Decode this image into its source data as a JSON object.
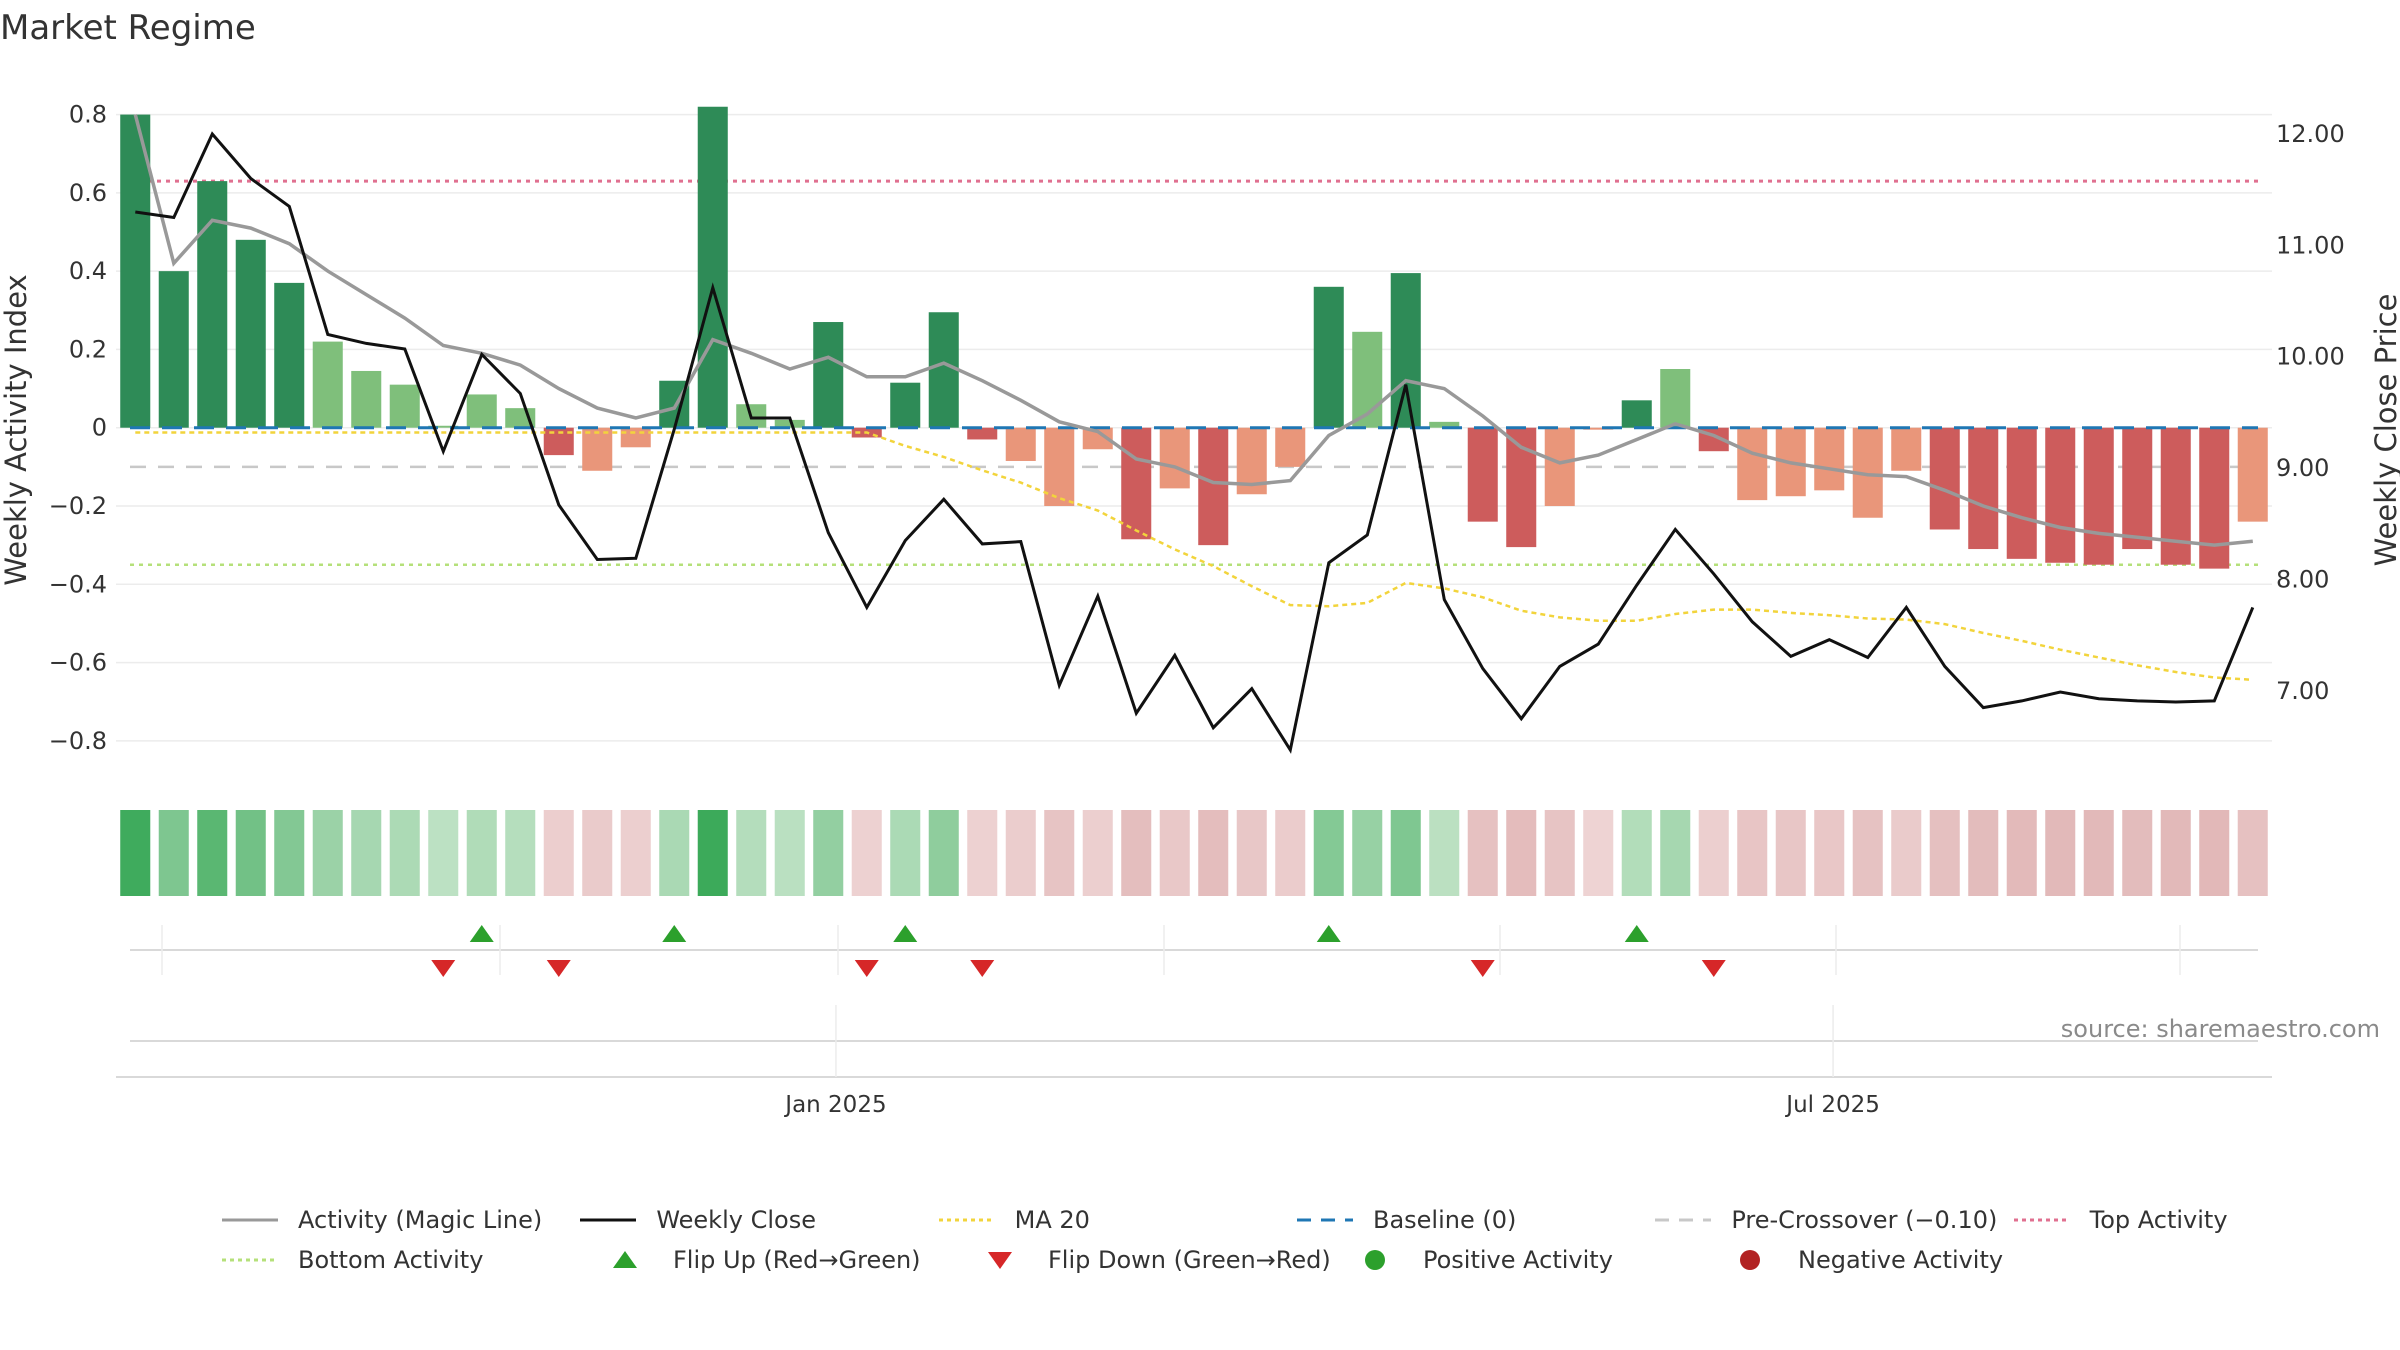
{
  "chart_data": {
    "type": "bar",
    "title": "Market Regime",
    "source": "source: sharemaestro.com",
    "ylabel_left": "Weekly Activity Index",
    "ylabel_right": "Weekly Close Price",
    "ylim_left": [
      -0.9,
      0.85
    ],
    "ylim_right": [
      6.2,
      12.35
    ],
    "yticks_left": [
      0.8,
      0.6,
      0.4,
      0.2,
      0,
      -0.2,
      -0.4,
      -0.6,
      -0.8
    ],
    "yticks_left_labels": [
      "0.8",
      "0.6",
      "0.4",
      "0.2",
      "0",
      "−0.2",
      "−0.4",
      "−0.6",
      "−0.8"
    ],
    "yticks_right": [
      12,
      11,
      10,
      9,
      8,
      7
    ],
    "yticks_right_labels": [
      "12.00",
      "11.00",
      "10.00",
      "9.00",
      "8.00",
      "7.00"
    ],
    "xtick_labels": [
      {
        "label": "Jan 2025",
        "week": 18.7
      },
      {
        "label": "Jul 2025",
        "week": 44.6
      }
    ],
    "weeks": 56,
    "activity": [
      0.8,
      0.4,
      0.63,
      0.48,
      0.37,
      0.22,
      0.145,
      0.11,
      0.005,
      0.085,
      0.05,
      -0.07,
      -0.11,
      -0.05,
      0.12,
      0.82,
      0.06,
      0.02,
      0.27,
      -0.025,
      0.115,
      0.295,
      -0.03,
      -0.085,
      -0.2,
      -0.055,
      -0.285,
      -0.155,
      -0.3,
      -0.17,
      -0.1,
      0.36,
      0.245,
      0.395,
      0.015,
      -0.24,
      -0.305,
      -0.2,
      -0.005,
      0.07,
      0.15,
      -0.06,
      -0.185,
      -0.175,
      -0.16,
      -0.23,
      -0.11,
      -0.26,
      -0.31,
      -0.335,
      -0.345,
      -0.35,
      -0.31,
      -0.35,
      -0.36,
      -0.24
    ],
    "magic_line": [
      0.8,
      0.42,
      0.53,
      0.51,
      0.47,
      0.4,
      0.34,
      0.28,
      0.21,
      0.19,
      0.16,
      0.1,
      0.05,
      0.025,
      0.05,
      0.225,
      0.19,
      0.15,
      0.18,
      0.13,
      0.13,
      0.165,
      0.12,
      0.07,
      0.015,
      -0.01,
      -0.08,
      -0.1,
      -0.14,
      -0.145,
      -0.135,
      -0.02,
      0.035,
      0.12,
      0.1,
      0.03,
      -0.05,
      -0.09,
      -0.07,
      -0.03,
      0.01,
      -0.02,
      -0.065,
      -0.09,
      -0.105,
      -0.12,
      -0.125,
      -0.16,
      -0.2,
      -0.23,
      -0.255,
      -0.27,
      -0.28,
      -0.29,
      -0.3,
      -0.29
    ],
    "weekly_close": [
      11.3,
      11.25,
      12.0,
      11.6,
      11.35,
      10.2,
      10.12,
      10.07,
      9.15,
      10.02,
      9.67,
      8.67,
      8.18,
      8.19,
      9.35,
      10.62,
      9.45,
      9.45,
      8.42,
      7.75,
      8.35,
      8.72,
      8.32,
      8.34,
      7.05,
      7.85,
      6.8,
      7.32,
      6.67,
      7.02,
      6.47,
      8.15,
      8.4,
      9.75,
      7.82,
      7.2,
      6.75,
      7.22,
      7.42,
      7.95,
      8.45,
      8.05,
      7.62,
      7.31,
      7.46,
      7.3,
      7.75,
      7.22,
      6.85,
      6.91,
      6.99,
      6.93,
      6.91,
      6.9,
      6.91,
      7.75
    ],
    "ma20": [
      9.32,
      9.32,
      9.32,
      9.32,
      9.32,
      9.32,
      9.32,
      9.32,
      9.32,
      9.32,
      9.32,
      9.32,
      9.32,
      9.32,
      9.32,
      9.32,
      9.32,
      9.32,
      9.32,
      9.32,
      9.2,
      9.1,
      8.98,
      8.87,
      8.73,
      8.62,
      8.44,
      8.27,
      8.12,
      7.94,
      7.77,
      7.76,
      7.79,
      7.97,
      7.92,
      7.84,
      7.72,
      7.66,
      7.63,
      7.63,
      7.69,
      7.73,
      7.73,
      7.7,
      7.68,
      7.65,
      7.64,
      7.6,
      7.52,
      7.45,
      7.37,
      7.3,
      7.23,
      7.17,
      7.12,
      7.1
    ],
    "ma20_start_week": 0,
    "baseline": 0,
    "pre_crossover": -0.1,
    "top_activity": 0.63,
    "bottom_activity": -0.35,
    "flip_up_weeks": [
      9,
      14,
      20,
      31,
      39
    ],
    "flip_down_weeks": [
      8,
      11,
      19,
      22,
      35,
      41
    ],
    "colors": {
      "strong_green": "#2e8b57",
      "light_green": "#7fbf7b",
      "strong_red": "#cd5c5c",
      "light_red": "#e9967a",
      "magic_line": "#999999",
      "weekly_close": "#111111",
      "ma20": "#f2d43c",
      "baseline": "#1f77b4",
      "pre_crossover": "#c8c8c8",
      "top_activity": "#e07090",
      "bottom_activity": "#b5e07a",
      "flip_up": "#2ca02c",
      "flip_down": "#d62728",
      "positive_activity": "#2ca02c",
      "negative_activity": "#b22222"
    },
    "legend": [
      {
        "label": "Activity (Magic Line)",
        "style": "solid",
        "color": "#999999"
      },
      {
        "label": "Weekly Close",
        "style": "solid",
        "color": "#111111"
      },
      {
        "label": "MA 20",
        "style": "dotted",
        "color": "#f2d43c"
      },
      {
        "label": "Baseline (0)",
        "style": "dashed",
        "color": "#1f77b4"
      },
      {
        "label": "Pre-Crossover (−0.10)",
        "style": "dashed",
        "color": "#c8c8c8"
      },
      {
        "label": "Top Activity",
        "style": "dotted",
        "color": "#e07090"
      },
      {
        "label": "Bottom Activity",
        "style": "dotted",
        "color": "#b5e07a"
      },
      {
        "label": "Flip Up (Red→Green)",
        "style": "triangle-up",
        "color": "#2ca02c"
      },
      {
        "label": "Flip Down (Green→Red)",
        "style": "triangle-down",
        "color": "#d62728"
      },
      {
        "label": "Positive Activity",
        "style": "circle",
        "color": "#2ca02c"
      },
      {
        "label": "Negative Activity",
        "style": "circle",
        "color": "#b22222"
      }
    ]
  }
}
